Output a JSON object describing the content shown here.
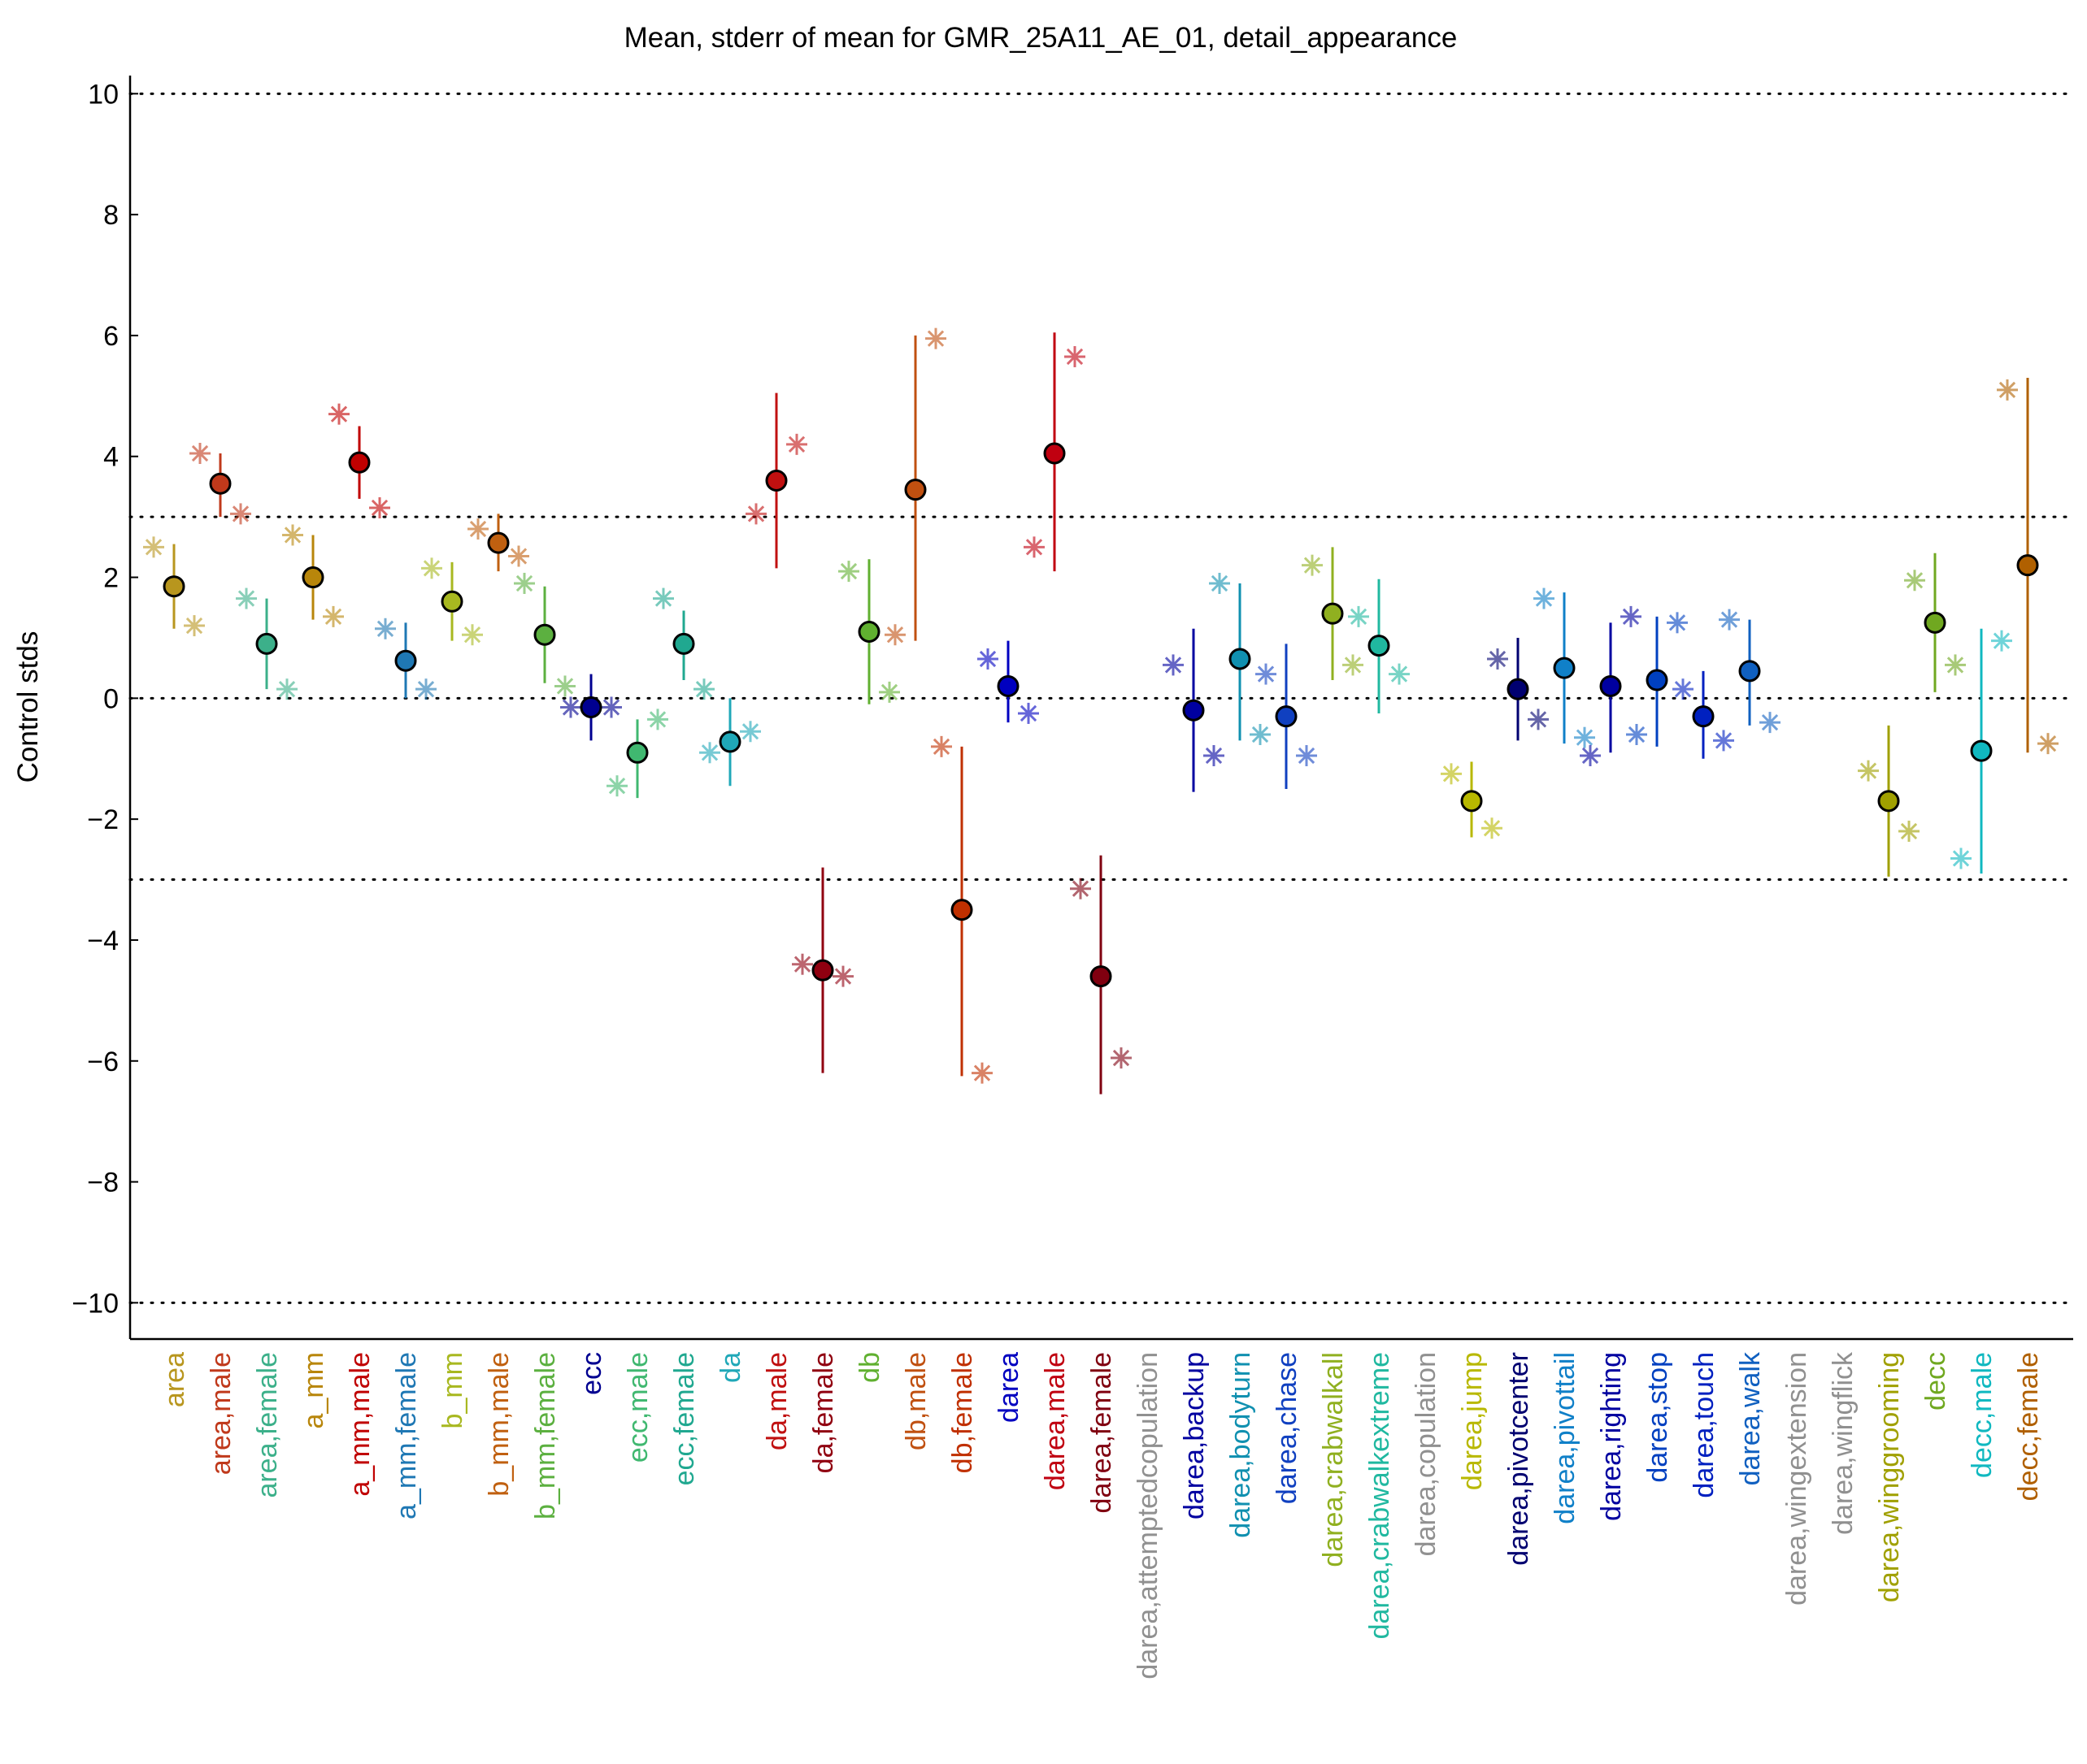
{
  "chart_data": {
    "type": "errorbar",
    "title": "Mean, stderr of mean for GMR_25A11_AE_01, detail_appearance",
    "y_label": "Control stds",
    "categories": [
      "area",
      "area,male",
      "area,female",
      "a_mm",
      "a_mm,male",
      "a_mm,female",
      "b_mm",
      "b_mm,male",
      "b_mm,female",
      "ecc",
      "ecc,male",
      "ecc,female",
      "da",
      "da,male",
      "da,female",
      "db",
      "db,male",
      "db,female",
      "darea",
      "darea,male",
      "darea,female",
      "darea,attemptedcopulation",
      "darea,backup",
      "darea,bodyturn",
      "darea,chase",
      "darea,crabwalkall",
      "darea,crabwalkextreme",
      "darea,copulation",
      "darea,jump",
      "darea,pivotcenter",
      "darea,pivottail",
      "darea,righting",
      "darea,stop",
      "darea,touch",
      "darea,walk",
      "darea,wingextension",
      "darea,wingflick",
      "darea,winggrooming",
      "decc",
      "decc,male",
      "decc,female"
    ],
    "colors": [
      "#b8961e",
      "#c0391b",
      "#3cb08a",
      "#b8860b",
      "#c00000",
      "#1f78b4",
      "#a8b820",
      "#c06010",
      "#5cb040",
      "#000090",
      "#40b870",
      "#20a890",
      "#20a8b8",
      "#c01010",
      "#900010",
      "#60b030",
      "#c05010",
      "#c03000",
      "#0000c0",
      "#c00010",
      "#800010",
      "#909090",
      "#0000a0",
      "#1090b0",
      "#1040c0",
      "#90b020",
      "#20b8a0",
      "#909090",
      "#b8b800",
      "#000070",
      "#1080c8",
      "#0000a0",
      "#0040c0",
      "#0020c0",
      "#1060c0",
      "#909090",
      "#909090",
      "#a0a000",
      "#70a820",
      "#10b8c0",
      "#b06000"
    ],
    "values": [
      1.85,
      3.55,
      0.9,
      2.0,
      3.9,
      0.62,
      1.6,
      2.57,
      1.05,
      -0.15,
      -0.9,
      0.9,
      -0.72,
      3.6,
      -4.5,
      1.1,
      3.45,
      -3.5,
      0.2,
      4.05,
      -4.6,
      null,
      -0.2,
      0.65,
      -0.3,
      1.4,
      0.87,
      null,
      -1.7,
      0.15,
      0.5,
      0.2,
      0.3,
      -0.3,
      0.45,
      null,
      null,
      -1.7,
      1.25,
      -0.87,
      2.2
    ],
    "lower": [
      1.15,
      3.0,
      0.15,
      1.3,
      3.3,
      0.0,
      0.95,
      2.1,
      0.25,
      -0.7,
      -1.65,
      0.3,
      -1.45,
      2.15,
      -6.2,
      -0.1,
      0.95,
      -6.25,
      -0.4,
      2.1,
      -6.55,
      null,
      -1.55,
      -0.7,
      -1.5,
      0.3,
      -0.25,
      null,
      -2.3,
      -0.7,
      -0.75,
      -0.9,
      -0.8,
      -1.0,
      -0.45,
      null,
      null,
      -2.95,
      0.1,
      -2.9,
      -0.9
    ],
    "upper": [
      2.55,
      4.05,
      1.65,
      2.7,
      4.5,
      1.25,
      2.25,
      3.05,
      1.85,
      0.4,
      -0.35,
      1.45,
      0.0,
      5.05,
      -2.8,
      2.3,
      6.0,
      -0.8,
      0.95,
      6.05,
      -2.6,
      null,
      1.15,
      1.9,
      0.9,
      2.5,
      1.97,
      null,
      -1.05,
      1.0,
      1.75,
      1.25,
      1.35,
      0.45,
      1.3,
      null,
      null,
      -0.45,
      2.4,
      1.15,
      5.3
    ],
    "left": [
      2.5,
      4.05,
      1.65,
      2.7,
      4.7,
      1.15,
      2.15,
      2.8,
      1.9,
      -0.15,
      -1.45,
      1.65,
      -0.9,
      3.05,
      -4.4,
      2.1,
      1.05,
      -0.8,
      0.65,
      2.5,
      -3.15,
      null,
      0.55,
      1.9,
      0.4,
      2.2,
      1.35,
      null,
      -1.25,
      0.65,
      1.65,
      -0.95,
      -0.6,
      0.15,
      1.3,
      null,
      null,
      -1.2,
      1.95,
      -2.65,
      5.1
    ],
    "right": [
      1.2,
      3.05,
      0.15,
      1.35,
      3.15,
      0.15,
      1.05,
      2.35,
      0.2,
      -0.15,
      -0.35,
      0.15,
      -0.55,
      4.2,
      -4.6,
      0.1,
      5.95,
      -6.2,
      -0.25,
      5.65,
      -5.95,
      null,
      -0.95,
      -0.6,
      -0.95,
      0.55,
      0.4,
      null,
      -2.15,
      -0.35,
      -0.65,
      1.35,
      1.25,
      -0.7,
      -0.4,
      null,
      null,
      -2.2,
      0.55,
      0.95,
      -0.75
    ],
    "ylim": [
      -10.6,
      10.3
    ],
    "yticks": [
      {
        "value": -10,
        "label": "−10"
      },
      {
        "value": -8,
        "label": "−8"
      },
      {
        "value": -6,
        "label": "−6"
      },
      {
        "value": -4,
        "label": "−4"
      },
      {
        "value": -2,
        "label": "−2"
      },
      0,
      2,
      4,
      6,
      8,
      10
    ],
    "reference_lines": [
      -10,
      -3,
      0,
      3,
      10
    ]
  }
}
